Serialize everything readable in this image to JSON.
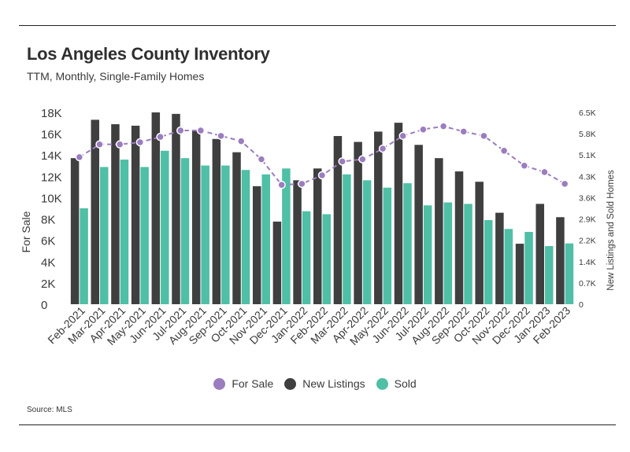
{
  "header": {
    "title": "Los Angeles County Inventory",
    "subtitle": "TTM, Monthly, Single-Family Homes"
  },
  "footer": {
    "source": "Source: MLS"
  },
  "colors": {
    "for_sale": "#9b7dbf",
    "new_listings": "#3f3f3f",
    "sold": "#4fbfa5"
  },
  "chart_data": {
    "type": "bar",
    "categories": [
      "Feb-2021",
      "Mar-2021",
      "Apr-2021",
      "May-2021",
      "Jun-2021",
      "Jul-2021",
      "Aug-2021",
      "Sep-2021",
      "Oct-2021",
      "Nov-2021",
      "Dec-2021",
      "Jan-2022",
      "Feb-2022",
      "Mar-2022",
      "Apr-2022",
      "May-2022",
      "Jun-2022",
      "Jul-2022",
      "Aug-2022",
      "Sep-2022",
      "Oct-2022",
      "Nov-2022",
      "Dec-2022",
      "Jan-2023",
      "Feb-2023"
    ],
    "ylabel": "For Sale",
    "y2label": "New Listings and Sold Homes",
    "ylim": [
      0,
      18000
    ],
    "y2lim": [
      0,
      6500
    ],
    "yticks": [
      "0",
      "2K",
      "4K",
      "6K",
      "8K",
      "10K",
      "12K",
      "14K",
      "16K",
      "18K"
    ],
    "y2ticks": [
      "0",
      "0.7K",
      "1.4K",
      "2.2K",
      "2.9K",
      "3.6K",
      "4.3K",
      "5.1K",
      "5.8K",
      "6.5K"
    ],
    "series": [
      {
        "name": "For Sale",
        "type": "line",
        "axis": "left",
        "values": [
          13800,
          15000,
          15000,
          15200,
          15700,
          16300,
          16300,
          15800,
          15300,
          13600,
          11200,
          11300,
          12100,
          13400,
          13600,
          14600,
          15800,
          16400,
          16700,
          16200,
          15800,
          14400,
          13000,
          12400,
          11300
        ]
      },
      {
        "name": "New Listings",
        "type": "bar",
        "axis": "right",
        "values": [
          4950,
          6250,
          6100,
          6050,
          6500,
          6450,
          5900,
          5600,
          5150,
          4000,
          2800,
          4200,
          4600,
          5700,
          5500,
          5850,
          6150,
          5400,
          4950,
          4500,
          4150,
          3100,
          2050,
          3400,
          2950
        ]
      },
      {
        "name": "Sold",
        "type": "bar",
        "axis": "right",
        "values": [
          3250,
          4650,
          4900,
          4650,
          5200,
          4950,
          4700,
          4700,
          4550,
          4400,
          4600,
          3150,
          3050,
          4400,
          4200,
          3950,
          4100,
          3350,
          3450,
          3400,
          2850,
          2550,
          2450,
          1970,
          2060
        ]
      }
    ],
    "legend_position": "bottom",
    "grid": false
  }
}
